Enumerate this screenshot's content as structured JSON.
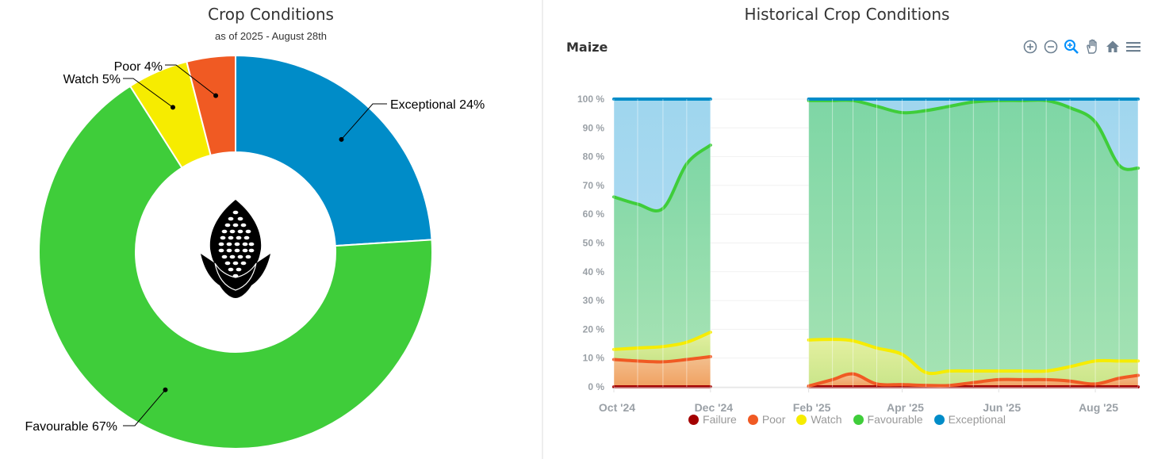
{
  "left": {
    "title": "Crop Conditions",
    "subtitle": "as of 2025 - August 28th",
    "icon": "maize-icon"
  },
  "right": {
    "title": "Historical Crop Conditions",
    "crop": "Maize",
    "toolbar": [
      "zoom-in-icon",
      "zoom-out-icon",
      "selection-zoom-icon",
      "pan-hand-icon",
      "home-reset-icon",
      "menu-icon"
    ]
  },
  "colors": {
    "failure": "#a30000",
    "poor": "#f05a23",
    "watch": "#f6ec00",
    "favourable": "#3fcd3a",
    "exceptional": "#008cc8"
  },
  "chart_data": [
    {
      "type": "pie",
      "variant": "donut",
      "labels": [
        "Exceptional",
        "Favourable",
        "Watch",
        "Poor"
      ],
      "values": [
        24,
        67,
        5,
        4
      ],
      "data_labels": [
        "Exceptional 24%",
        "Favourable 67%",
        "Watch 5%",
        "Poor 4%"
      ]
    },
    {
      "type": "area",
      "stacked": true,
      "x": [
        "2024-10-01",
        "2024-10-16",
        "2024-11-01",
        "2024-11-16",
        "2024-12-01",
        "2025-02-01",
        "2025-02-16",
        "2025-03-01",
        "2025-03-16",
        "2025-04-01",
        "2025-04-16",
        "2025-05-01",
        "2025-05-16",
        "2025-06-01",
        "2025-06-16",
        "2025-07-01",
        "2025-07-16",
        "2025-08-01",
        "2025-08-16",
        "2025-08-28"
      ],
      "gap": [
        "2024-12-01",
        "2025-02-01"
      ],
      "xticks": [
        "Oct '24",
        "Dec '24",
        "Feb '25",
        "Apr '25",
        "Jun '25",
        "Aug '25"
      ],
      "ylim": [
        0,
        100
      ],
      "yticks": [
        "0 %",
        "10 %",
        "20 %",
        "30 %",
        "40 %",
        "50 %",
        "60 %",
        "70 %",
        "80 %",
        "90 %",
        "100 %"
      ],
      "series": [
        {
          "name": "Failure",
          "values": [
            0,
            0,
            0,
            0,
            0,
            0,
            0,
            0,
            0,
            0,
            0,
            0,
            0,
            0,
            0,
            0,
            0,
            0,
            0,
            0
          ]
        },
        {
          "name": "Poor",
          "values": [
            9.5,
            9,
            8.7,
            9.5,
            10.5,
            0.3,
            2.5,
            4.5,
            1,
            0.8,
            0.5,
            0.5,
            1.5,
            2.5,
            2.5,
            2.5,
            2,
            1,
            3,
            4
          ]
        },
        {
          "name": "Watch",
          "values": [
            3.5,
            4.5,
            5.3,
            6,
            8.5,
            16,
            14,
            11.5,
            12.5,
            10.5,
            4.5,
            5,
            4,
            3,
            3,
            3,
            5,
            8,
            6,
            5
          ]
        },
        {
          "name": "Favourable",
          "values": [
            53,
            50,
            48,
            62,
            65,
            83.2,
            83,
            83.5,
            84,
            84,
            91,
            92,
            93.5,
            94,
            94,
            94,
            90,
            83,
            68,
            67
          ]
        },
        {
          "name": "Exceptional",
          "values": [
            34,
            36.5,
            38,
            22.5,
            16,
            0.5,
            0.5,
            0.5,
            2.5,
            4.7,
            4,
            2.5,
            1,
            0.5,
            0.5,
            0.5,
            3,
            8,
            23,
            24
          ]
        }
      ]
    }
  ]
}
